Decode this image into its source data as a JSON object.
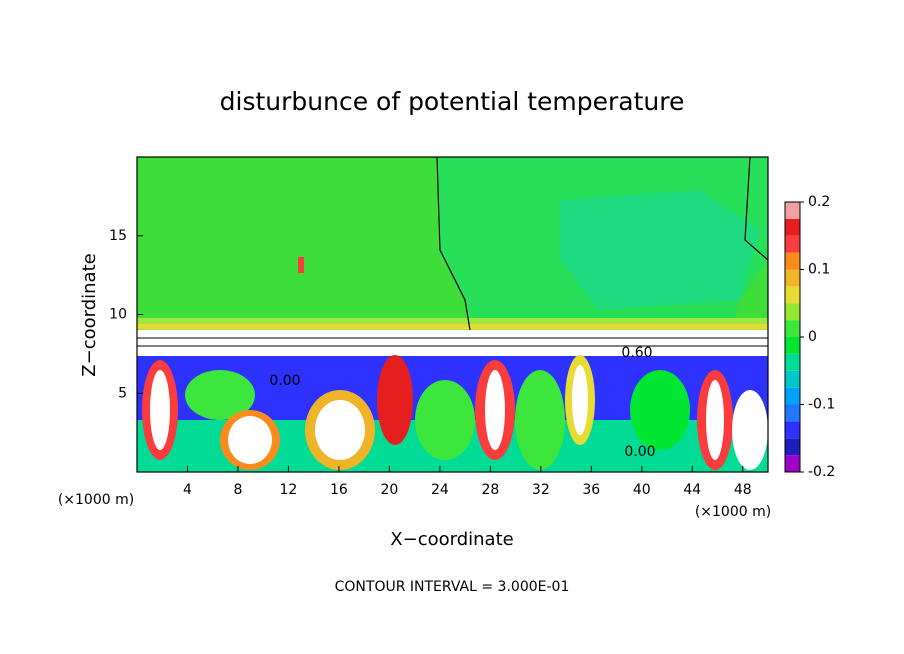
{
  "chart_data": {
    "type": "contour",
    "title": "disturbunce of potential temperature",
    "xlabel": "X−coordinate",
    "ylabel": "Z−coordinate",
    "x_unit_left": "(×1000 m)",
    "x_unit_right": "(×1000 m)",
    "xlim": [
      0,
      50
    ],
    "xticks": [
      4,
      8,
      12,
      16,
      20,
      24,
      28,
      32,
      36,
      40,
      44,
      48
    ],
    "ylim": [
      0,
      20
    ],
    "yticks": [
      5,
      10,
      15
    ],
    "colorbar": {
      "lim": [
        -0.2,
        0.2
      ],
      "ticks": [
        0.2,
        0.1,
        0,
        -0.1,
        -0.2
      ],
      "colors": [
        "#a000c8",
        "#1e1ebe",
        "#2d32ff",
        "#1f78ff",
        "#00a0ff",
        "#00c8c8",
        "#00dc96",
        "#00e632",
        "#3ce63c",
        "#96e632",
        "#e6dc32",
        "#f0b428",
        "#fa8c1e",
        "#fa3c3c",
        "#e61e1e",
        "#f0a0a0"
      ]
    },
    "contour_labels": [
      "0.60",
      "0.00",
      "0.00"
    ],
    "footer": "CONTOUR INTERVAL = 3.000E-01"
  }
}
